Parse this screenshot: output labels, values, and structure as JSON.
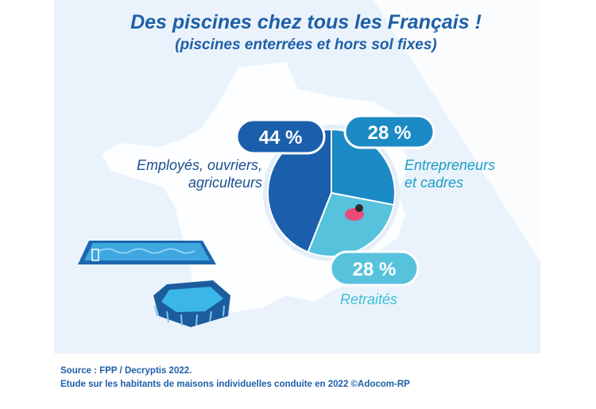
{
  "title": "Des piscines chez tous les Français !",
  "subtitle": "(piscines enterrées et hors sol fixes)",
  "chart_data": {
    "type": "pie",
    "categories": [
      "Employés, ouvriers, agriculteurs",
      "Entrepreneurs et cadres",
      "Retraités"
    ],
    "values": [
      44,
      28,
      28
    ],
    "value_labels": [
      "44 %",
      "28 %",
      "28 %"
    ],
    "colors": [
      "#1b5fac",
      "#1c8ac4",
      "#57c2dc"
    ]
  },
  "labels": {
    "left_line1": "Employés, ouvriers,",
    "left_line2": "agriculteurs",
    "right_line1": "Entrepreneurs",
    "right_line2": "et cadres",
    "bottom": "Retraités"
  },
  "source_line1": "Source : FPP / Decryptis 2022.",
  "source_line2": "Etude sur les habitants de maisons individuelles conduite en 2022 ©Adocom-RP"
}
